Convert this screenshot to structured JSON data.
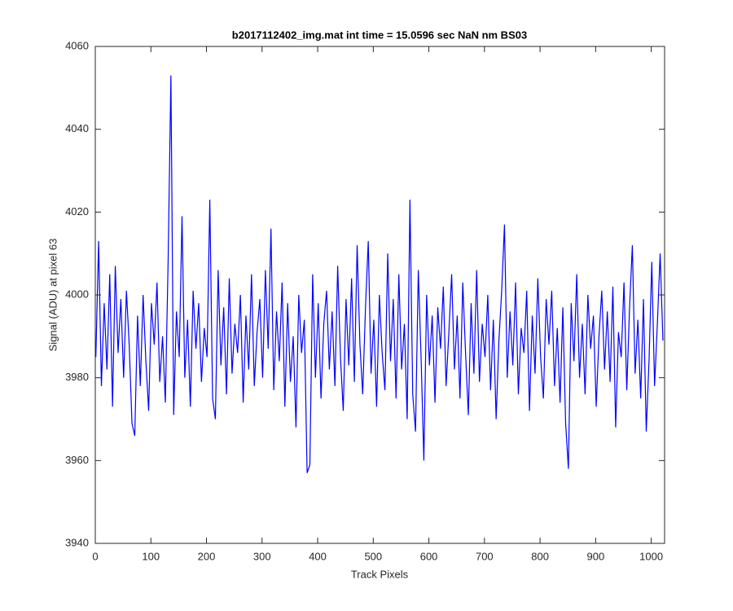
{
  "chart_data": {
    "type": "line",
    "title": "b2017112402_img.mat int time = 15.0596 sec  NaN nm BS03",
    "xlabel": "Track Pixels",
    "ylabel": "Signal (ADU) at pixel 63",
    "color": "#0000ff",
    "xlim": [
      0,
      1024
    ],
    "xticks": [
      0,
      100,
      200,
      300,
      400,
      500,
      600,
      700,
      800,
      900,
      1000
    ],
    "ylim": [
      3940,
      4060
    ],
    "yticks": [
      3940,
      3960,
      3980,
      4000,
      4020,
      4040,
      4060
    ],
    "grid": false,
    "x": [
      1,
      6,
      11,
      16,
      21,
      26,
      31,
      36,
      41,
      46,
      51,
      56,
      61,
      66,
      71,
      76,
      81,
      86,
      91,
      96,
      101,
      106,
      111,
      116,
      121,
      126,
      131,
      136,
      141,
      146,
      151,
      156,
      161,
      166,
      171,
      176,
      181,
      186,
      191,
      196,
      201,
      206,
      211,
      216,
      221,
      226,
      231,
      236,
      241,
      246,
      251,
      256,
      261,
      266,
      271,
      276,
      281,
      286,
      291,
      296,
      301,
      306,
      311,
      316,
      321,
      326,
      331,
      336,
      341,
      346,
      351,
      356,
      361,
      366,
      371,
      376,
      381,
      386,
      391,
      396,
      401,
      406,
      411,
      416,
      421,
      426,
      431,
      436,
      441,
      446,
      451,
      456,
      461,
      466,
      471,
      476,
      481,
      486,
      491,
      496,
      501,
      506,
      511,
      516,
      521,
      526,
      531,
      536,
      541,
      546,
      551,
      556,
      561,
      566,
      571,
      576,
      581,
      586,
      591,
      596,
      601,
      606,
      611,
      616,
      621,
      626,
      631,
      636,
      641,
      646,
      651,
      656,
      661,
      666,
      671,
      676,
      681,
      686,
      691,
      696,
      701,
      706,
      711,
      716,
      721,
      726,
      731,
      736,
      741,
      746,
      751,
      756,
      761,
      766,
      771,
      776,
      781,
      786,
      791,
      796,
      801,
      806,
      811,
      816,
      821,
      826,
      831,
      836,
      841,
      846,
      851,
      856,
      861,
      866,
      871,
      876,
      881,
      886,
      891,
      896,
      901,
      906,
      911,
      916,
      921,
      926,
      931,
      936,
      941,
      946,
      951,
      956,
      961,
      966,
      971,
      976,
      981,
      986,
      991,
      996,
      1001,
      1006,
      1011,
      1016,
      1021
    ],
    "values": [
      3985,
      4013,
      3978,
      3998,
      3982,
      4005,
      3973,
      4007,
      3986,
      3999,
      3980,
      4001,
      3988,
      3969,
      3966,
      3995,
      3978,
      4000,
      3984,
      3972,
      3998,
      3988,
      4003,
      3979,
      3990,
      3974,
      4008,
      4053,
      3971,
      3996,
      3985,
      4019,
      3980,
      3994,
      3973,
      4001,
      3987,
      3998,
      3979,
      3992,
      3985,
      4023,
      3975,
      3970,
      4006,
      3983,
      3997,
      3976,
      4004,
      3981,
      3993,
      3986,
      4000,
      3974,
      3995,
      3982,
      4005,
      3978,
      3991,
      3999,
      3980,
      4006,
      3987,
      4016,
      3977,
      3996,
      3984,
      4003,
      3973,
      3998,
      3979,
      3990,
      3968,
      4000,
      3986,
      3994,
      3957,
      3959,
      4005,
      3980,
      3998,
      3975,
      3993,
      4001,
      3982,
      3996,
      3978,
      4007,
      3985,
      3972,
      3999,
      3983,
      4004,
      3979,
      4012,
      3988,
      3976,
      3997,
      4013,
      3981,
      3994,
      3973,
      4000,
      3986,
      3977,
      4010,
      3984,
      3999,
      3975,
      4005,
      3982,
      3993,
      3970,
      4023,
      3976,
      3967,
      4006,
      3985,
      3960,
      4000,
      3983,
      3995,
      3974,
      3997,
      3987,
      4002,
      3978,
      3991,
      4005,
      3982,
      3995,
      3975,
      4003,
      3986,
      3971,
      3998,
      3981,
      4006,
      3979,
      3993,
      3985,
      4000,
      3977,
      3994,
      3970,
      3989,
      4001,
      4017,
      3980,
      3996,
      3983,
      4003,
      3976,
      3992,
      3986,
      4001,
      3972,
      3995,
      3981,
      4004,
      3985,
      3975,
      3999,
      3988,
      4001,
      3978,
      3992,
      3974,
      3997,
      3969,
      3958,
      3998,
      3984,
      4005,
      3980,
      3993,
      3976,
      4000,
      3987,
      3995,
      3973,
      3990,
      4001,
      3982,
      3996,
      3979,
      4002,
      3968,
      3991,
      3985,
      4003,
      3977,
      3997,
      4012,
      3981,
      3994,
      3975,
      3999,
      3967,
      3984,
      4008,
      3978,
      3993,
      4010,
      3989
    ]
  }
}
